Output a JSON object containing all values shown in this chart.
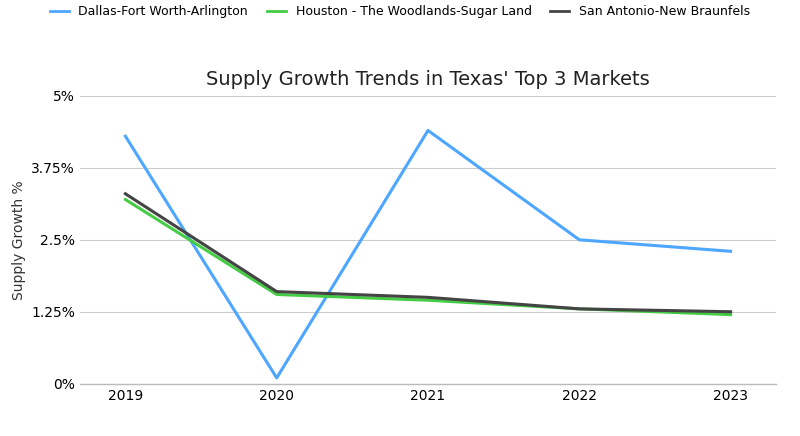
{
  "title": "Supply Growth Trends in Texas' Top 3 Markets",
  "xlabel": "",
  "ylabel": "Supply Growth %",
  "years": [
    2019,
    2020,
    2021,
    2022,
    2023
  ],
  "series": [
    {
      "label": "Dallas-Fort Worth-Arlington",
      "color": "#4da6ff",
      "linewidth": 2.2,
      "values": [
        0.043,
        0.001,
        0.044,
        0.025,
        0.023
      ]
    },
    {
      "label": "Houston - The Woodlands-Sugar Land",
      "color": "#44cc44",
      "linewidth": 2.2,
      "values": [
        0.032,
        0.0155,
        0.0145,
        0.013,
        0.012
      ]
    },
    {
      "label": "San Antonio-New Braunfels",
      "color": "#444444",
      "linewidth": 2.2,
      "values": [
        0.033,
        0.016,
        0.015,
        0.013,
        0.0125
      ]
    }
  ],
  "ylim": [
    0,
    0.05
  ],
  "yticks": [
    0.0,
    0.0125,
    0.025,
    0.0375,
    0.05
  ],
  "ytick_labels": [
    "0%",
    "1.25%",
    "2.5%",
    "3.75%",
    "5%"
  ],
  "background_color": "#ffffff",
  "grid_color": "#cccccc",
  "title_fontsize": 14,
  "axis_label_fontsize": 10,
  "tick_fontsize": 10,
  "legend_fontsize": 9
}
